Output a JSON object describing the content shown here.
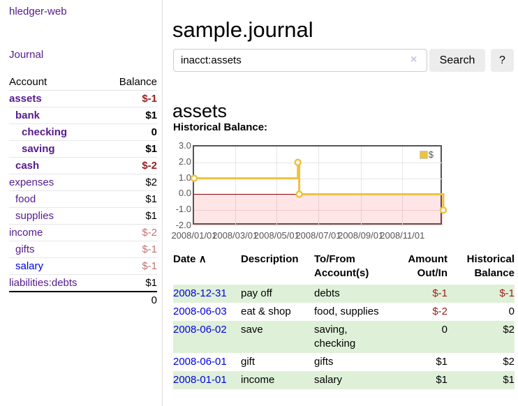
{
  "app": {
    "title": "hledger-web",
    "nav_journal": "Journal"
  },
  "colors": {
    "link_purple": "#551a8b",
    "link_blue": "#0000e0",
    "negative_strong": "#9b1c1c",
    "negative_soft": "#c07575",
    "stripe_green": "#dff0d8",
    "series_yellow": "#edc240"
  },
  "sidebar": {
    "accounts_table": {
      "headers": {
        "account": "Account",
        "balance": "Balance"
      },
      "rows": [
        {
          "name": "assets",
          "level": 0,
          "bold": true,
          "link_color": "purple",
          "balance": "$-1",
          "balance_style": "neg-strong"
        },
        {
          "name": "bank",
          "level": 1,
          "bold": true,
          "link_color": "purple",
          "balance": "$1",
          "balance_style": "normal"
        },
        {
          "name": "checking",
          "level": 2,
          "bold": true,
          "link_color": "purple",
          "balance": "0",
          "balance_style": "normal"
        },
        {
          "name": "saving",
          "level": 2,
          "bold": true,
          "link_color": "purple",
          "balance": "$1",
          "balance_style": "normal"
        },
        {
          "name": "cash",
          "level": 1,
          "bold": true,
          "link_color": "purple",
          "balance": "$-2",
          "balance_style": "neg-strong"
        },
        {
          "name": "expenses",
          "level": 0,
          "bold": false,
          "link_color": "purple",
          "balance": "$2",
          "balance_style": "normal"
        },
        {
          "name": "food",
          "level": 1,
          "bold": false,
          "link_color": "purple",
          "balance": "$1",
          "balance_style": "normal"
        },
        {
          "name": "supplies",
          "level": 1,
          "bold": false,
          "link_color": "purple",
          "balance": "$1",
          "balance_style": "normal"
        },
        {
          "name": "income",
          "level": 0,
          "bold": false,
          "link_color": "purple",
          "balance": "$-2",
          "balance_style": "neg-soft"
        },
        {
          "name": "gifts",
          "level": 1,
          "bold": false,
          "link_color": "purple",
          "balance": "$-1",
          "balance_style": "neg-soft"
        },
        {
          "name": "salary",
          "level": 1,
          "bold": false,
          "link_color": "blue",
          "balance": "$-1",
          "balance_style": "neg-soft"
        },
        {
          "name": "liabilities:debts",
          "level": 0,
          "bold": false,
          "link_color": "purple",
          "balance": "$1",
          "balance_style": "normal"
        }
      ],
      "total": "0"
    }
  },
  "header": {
    "title": "sample.journal"
  },
  "search": {
    "value": "inacct:assets",
    "clear_icon": "×",
    "button_label": "Search",
    "help_label": "?"
  },
  "account_page": {
    "title": "assets",
    "chart_label": "Historical Balance:"
  },
  "chart_data": {
    "type": "line",
    "style": "step",
    "title": "Historical Balance",
    "series": [
      {
        "name": "$",
        "points": [
          {
            "date": "2008-01-01",
            "value": 1
          },
          {
            "date": "2008-06-01",
            "value": 2
          },
          {
            "date": "2008-06-03",
            "value": 0
          },
          {
            "date": "2008-12-31",
            "value": -1
          }
        ]
      }
    ],
    "x_ticks": [
      "2008/01/01",
      "2008/03/01",
      "2008/05/01",
      "2008/07/01",
      "2008/09/01",
      "2008/11/01"
    ],
    "y_ticks": [
      3.0,
      2.0,
      1.0,
      0.0,
      -1.0,
      -2.0
    ],
    "ylim": [
      -2,
      3
    ],
    "x_range": [
      "2008-01-01",
      "2008-12-31"
    ],
    "grid": true,
    "legend": {
      "label": "$",
      "color": "#edc240",
      "position": "top-right"
    },
    "line_color": "#edc240",
    "zero_line_color": "#8b0000",
    "negative_region_color": "rgba(255,0,0,0.10)"
  },
  "transactions": {
    "headers": [
      {
        "line1": "Date",
        "line2": "",
        "align": "left",
        "sort": true
      },
      {
        "line1": "Description",
        "line2": "",
        "align": "left"
      },
      {
        "line1": "To/From",
        "line2": "Account(s)",
        "align": "left"
      },
      {
        "line1": "Amount",
        "line2": "Out/In",
        "align": "right"
      },
      {
        "line1": "Historical",
        "line2": "Balance",
        "align": "right"
      }
    ],
    "sort_icon": "∧",
    "rows": [
      {
        "date": "2008-12-31",
        "description": "pay off",
        "accounts": "debts",
        "amount": "$-1",
        "amount_neg": true,
        "balance": "$-1",
        "balance_neg": true
      },
      {
        "date": "2008-06-03",
        "description": "eat & shop",
        "accounts": "food, supplies",
        "amount": "$-2",
        "amount_neg": true,
        "balance": "0",
        "balance_neg": false
      },
      {
        "date": "2008-06-02",
        "description": "save",
        "accounts": "saving, checking",
        "amount": "0",
        "amount_neg": false,
        "balance": "$2",
        "balance_neg": false
      },
      {
        "date": "2008-06-01",
        "description": "gift",
        "accounts": "gifts",
        "amount": "$1",
        "amount_neg": false,
        "balance": "$2",
        "balance_neg": false
      },
      {
        "date": "2008-01-01",
        "description": "income",
        "accounts": "salary",
        "amount": "$1",
        "amount_neg": false,
        "balance": "$1",
        "balance_neg": false
      }
    ]
  }
}
